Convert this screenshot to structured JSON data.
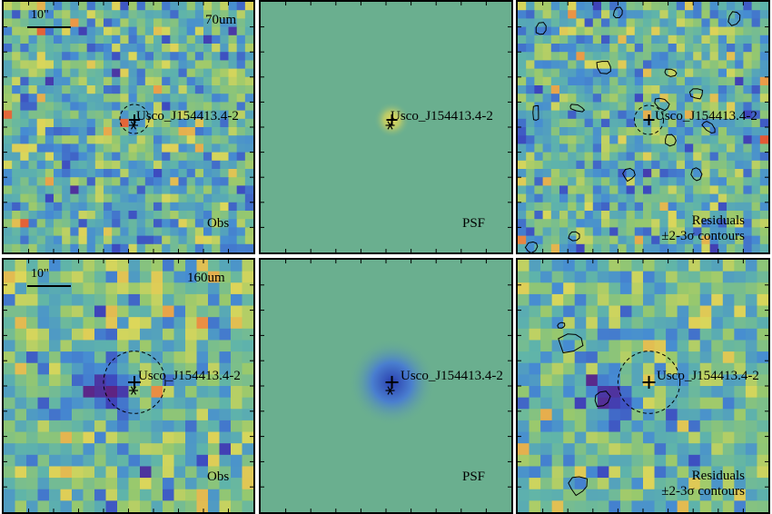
{
  "source_name": "Usco_J154413.4-2",
  "scale_label": "10\"",
  "rows": [
    {
      "band": "70um",
      "panels": [
        {
          "label": "Obs",
          "map": "noise70"
        },
        {
          "label": "PSF",
          "map": "psf70"
        },
        {
          "label": "Residuals",
          "label2": "±2-3σ contours",
          "map": "resid70"
        }
      ]
    },
    {
      "band": "160um",
      "panels": [
        {
          "label": "Obs",
          "map": "obs160"
        },
        {
          "label": "PSF",
          "map": "psf160"
        },
        {
          "label": "Residuals",
          "label2": "±2-3σ contours",
          "map": "resid160"
        }
      ]
    }
  ],
  "colors": {
    "background_model": "#6aaf8f",
    "contour": "#000000",
    "frame": "#000000"
  }
}
